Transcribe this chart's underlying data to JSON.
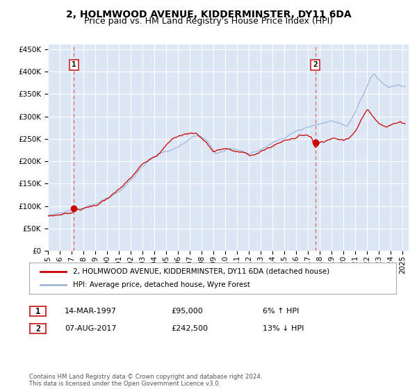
{
  "title": "2, HOLMWOOD AVENUE, KIDDERMINSTER, DY11 6DA",
  "subtitle": "Price paid vs. HM Land Registry's House Price Index (HPI)",
  "ylim": [
    0,
    460000
  ],
  "yticks": [
    0,
    50000,
    100000,
    150000,
    200000,
    250000,
    300000,
    350000,
    400000,
    450000
  ],
  "ytick_labels": [
    "£0",
    "£50K",
    "£100K",
    "£150K",
    "£200K",
    "£250K",
    "£300K",
    "£350K",
    "£400K",
    "£450K"
  ],
  "xlim_start": 1995.0,
  "xlim_end": 2025.5,
  "xtick_years": [
    1995,
    1996,
    1997,
    1998,
    1999,
    2000,
    2001,
    2002,
    2003,
    2004,
    2005,
    2006,
    2007,
    2008,
    2009,
    2010,
    2011,
    2012,
    2013,
    2014,
    2015,
    2016,
    2017,
    2018,
    2019,
    2020,
    2021,
    2022,
    2023,
    2024,
    2025
  ],
  "bg_color": "#dce6f5",
  "grid_color": "#ffffff",
  "hpi_line_color": "#a0b8d8",
  "price_line_color": "#cc0000",
  "vline_color": "#e06060",
  "sale1_x": 1997.2,
  "sale1_y": 95000,
  "sale2_x": 2017.6,
  "sale2_y": 242500,
  "legend_line1": "2, HOLMWOOD AVENUE, KIDDERMINSTER, DY11 6DA (detached house)",
  "legend_line2": "HPI: Average price, detached house, Wyre Forest",
  "annotation1_date": "14-MAR-1997",
  "annotation1_price": "£95,000",
  "annotation1_hpi": "6% ↑ HPI",
  "annotation2_date": "07-AUG-2017",
  "annotation2_price": "£242,500",
  "annotation2_hpi": "13% ↓ HPI",
  "footer": "Contains HM Land Registry data © Crown copyright and database right 2024.\nThis data is licensed under the Open Government Licence v3.0.",
  "title_fontsize": 10,
  "subtitle_fontsize": 9,
  "tick_fontsize": 7.5
}
